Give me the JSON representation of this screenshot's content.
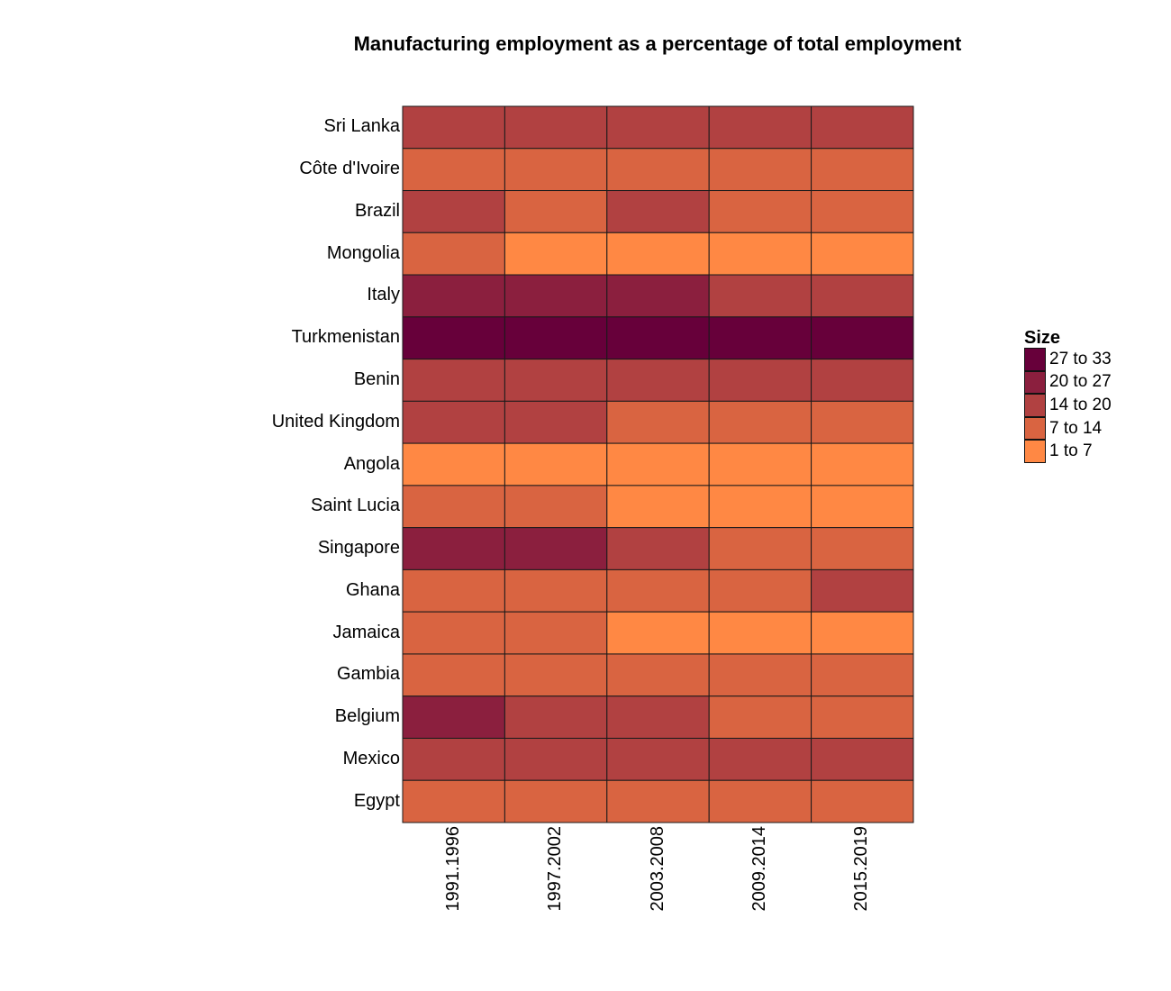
{
  "chart_data": {
    "type": "heatmap",
    "title": "Manufacturing employment as a percentage of total employment",
    "x_categories": [
      "1991.1996",
      "1997.2002",
      "2003.2008",
      "2009.2014",
      "2015.2019"
    ],
    "y_categories": [
      "Sri Lanka",
      "Côte d'Ivoire",
      "Brazil",
      "Mongolia",
      "Italy",
      "Turkmenistan",
      "Benin",
      "United Kingdom",
      "Angola",
      "Saint Lucia",
      "Singapore",
      "Ghana",
      "Jamaica",
      "Gambia",
      "Belgium",
      "Mexico",
      "Egypt"
    ],
    "legend": {
      "title": "Size",
      "position": "right",
      "bins": [
        {
          "label": "27 to 33",
          "color": "#67003a"
        },
        {
          "label": "20 to 27",
          "color": "#8b1f3e"
        },
        {
          "label": "14 to 20",
          "color": "#b14141"
        },
        {
          "label": "7 to 14",
          "color": "#d96441"
        },
        {
          "label": "1 to 7",
          "color": "#ff8844"
        }
      ]
    },
    "cells": [
      [
        "14 to 20",
        "14 to 20",
        "14 to 20",
        "14 to 20",
        "14 to 20"
      ],
      [
        "7 to 14",
        "7 to 14",
        "7 to 14",
        "7 to 14",
        "7 to 14"
      ],
      [
        "14 to 20",
        "7 to 14",
        "14 to 20",
        "7 to 14",
        "7 to 14"
      ],
      [
        "7 to 14",
        "1 to 7",
        "1 to 7",
        "1 to 7",
        "1 to 7"
      ],
      [
        "20 to 27",
        "20 to 27",
        "20 to 27",
        "14 to 20",
        "14 to 20"
      ],
      [
        "27 to 33",
        "27 to 33",
        "27 to 33",
        "27 to 33",
        "27 to 33"
      ],
      [
        "14 to 20",
        "14 to 20",
        "14 to 20",
        "14 to 20",
        "14 to 20"
      ],
      [
        "14 to 20",
        "14 to 20",
        "7 to 14",
        "7 to 14",
        "7 to 14"
      ],
      [
        "1 to 7",
        "1 to 7",
        "1 to 7",
        "1 to 7",
        "1 to 7"
      ],
      [
        "7 to 14",
        "7 to 14",
        "1 to 7",
        "1 to 7",
        "1 to 7"
      ],
      [
        "20 to 27",
        "20 to 27",
        "14 to 20",
        "7 to 14",
        "7 to 14"
      ],
      [
        "7 to 14",
        "7 to 14",
        "7 to 14",
        "7 to 14",
        "14 to 20"
      ],
      [
        "7 to 14",
        "7 to 14",
        "1 to 7",
        "1 to 7",
        "1 to 7"
      ],
      [
        "7 to 14",
        "7 to 14",
        "7 to 14",
        "7 to 14",
        "7 to 14"
      ],
      [
        "20 to 27",
        "14 to 20",
        "14 to 20",
        "7 to 14",
        "7 to 14"
      ],
      [
        "14 to 20",
        "14 to 20",
        "14 to 20",
        "14 to 20",
        "14 to 20"
      ],
      [
        "7 to 14",
        "7 to 14",
        "7 to 14",
        "7 to 14",
        "7 to 14"
      ]
    ],
    "grid": false
  }
}
